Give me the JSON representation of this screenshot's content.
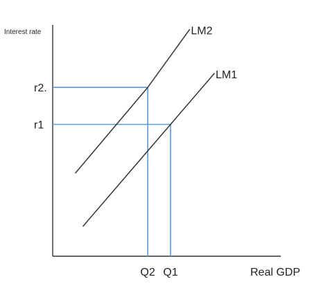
{
  "chart_data": {
    "type": "line",
    "y_axis_label": "Interest rate",
    "x_axis_label": "Real GDP",
    "series": [
      {
        "name": "LM2",
        "points": [
          {
            "x": 0.12,
            "y": 0.36
          },
          {
            "x": 0.5,
            "y": 0.73
          },
          {
            "x": 0.72,
            "y": 0.98
          }
        ]
      },
      {
        "name": "LM1",
        "points": [
          {
            "x": 0.16,
            "y": 0.13
          },
          {
            "x": 0.62,
            "y": 0.57
          },
          {
            "x": 0.85,
            "y": 0.79
          }
        ]
      }
    ],
    "equilibria": [
      {
        "id": "eq2",
        "x": 0.5,
        "y": 0.73,
        "x_label": "Q2",
        "y_label": "r2."
      },
      {
        "id": "eq1",
        "x": 0.62,
        "y": 0.57,
        "x_label": "Q1",
        "y_label": "r1"
      }
    ],
    "xlim": [
      0,
      1.2
    ],
    "ylim": [
      0,
      1.0
    ],
    "grid": false,
    "colors": {
      "lm_line": "#333333",
      "guide_line": "#5b9bd5",
      "axis": "#333333"
    }
  }
}
